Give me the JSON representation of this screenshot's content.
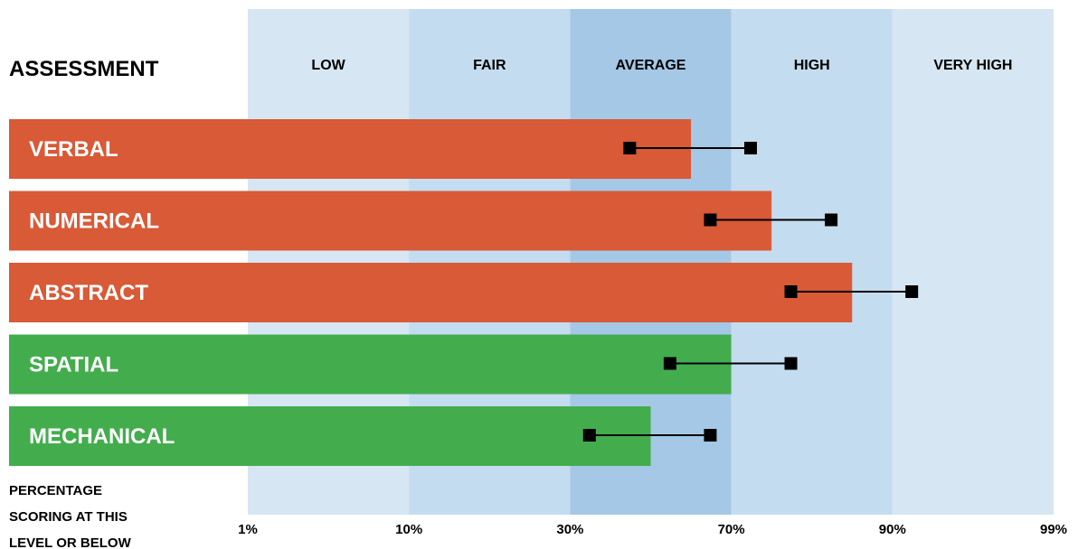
{
  "colors": {
    "bands": [
      "#d6e6f2",
      "#c4dcef",
      "#a4c8e5",
      "#c4dcef",
      "#d6e6f2"
    ],
    "orange": "#d85a37",
    "green": "#43ad4d",
    "marker": "#000000",
    "text": "#000000",
    "bar_text": "#ffffff"
  },
  "chart_data": {
    "type": "bar",
    "orientation": "horizontal",
    "title": "ASSESSMENT",
    "footnote": [
      "PERCENTAGE",
      "SCORING AT THIS",
      "LEVEL OR BELOW"
    ],
    "bands": [
      {
        "label": "LOW",
        "from": 0,
        "to": 1
      },
      {
        "label": "FAIR",
        "from": 1,
        "to": 2
      },
      {
        "label": "AVERAGE",
        "from": 2,
        "to": 3
      },
      {
        "label": "HIGH",
        "from": 3,
        "to": 4
      },
      {
        "label": "VERY HIGH",
        "from": 4,
        "to": 5
      }
    ],
    "xticks": [
      "1%",
      "10%",
      "30%",
      "70%",
      "90%",
      "99%"
    ],
    "xlim": [
      0,
      5
    ],
    "categories": [
      "VERBAL",
      "NUMERICAL",
      "ABSTRACT",
      "SPATIAL",
      "MECHANICAL"
    ],
    "values": [
      2.75,
      3.25,
      3.75,
      3.0,
      2.5
    ],
    "bar_colors": [
      "orange",
      "orange",
      "orange",
      "green",
      "green"
    ],
    "ranges": [
      {
        "low": 2.37,
        "high": 3.12
      },
      {
        "low": 2.87,
        "high": 3.62
      },
      {
        "low": 3.37,
        "high": 4.12
      },
      {
        "low": 2.62,
        "high": 3.37
      },
      {
        "low": 2.12,
        "high": 2.87
      }
    ]
  }
}
